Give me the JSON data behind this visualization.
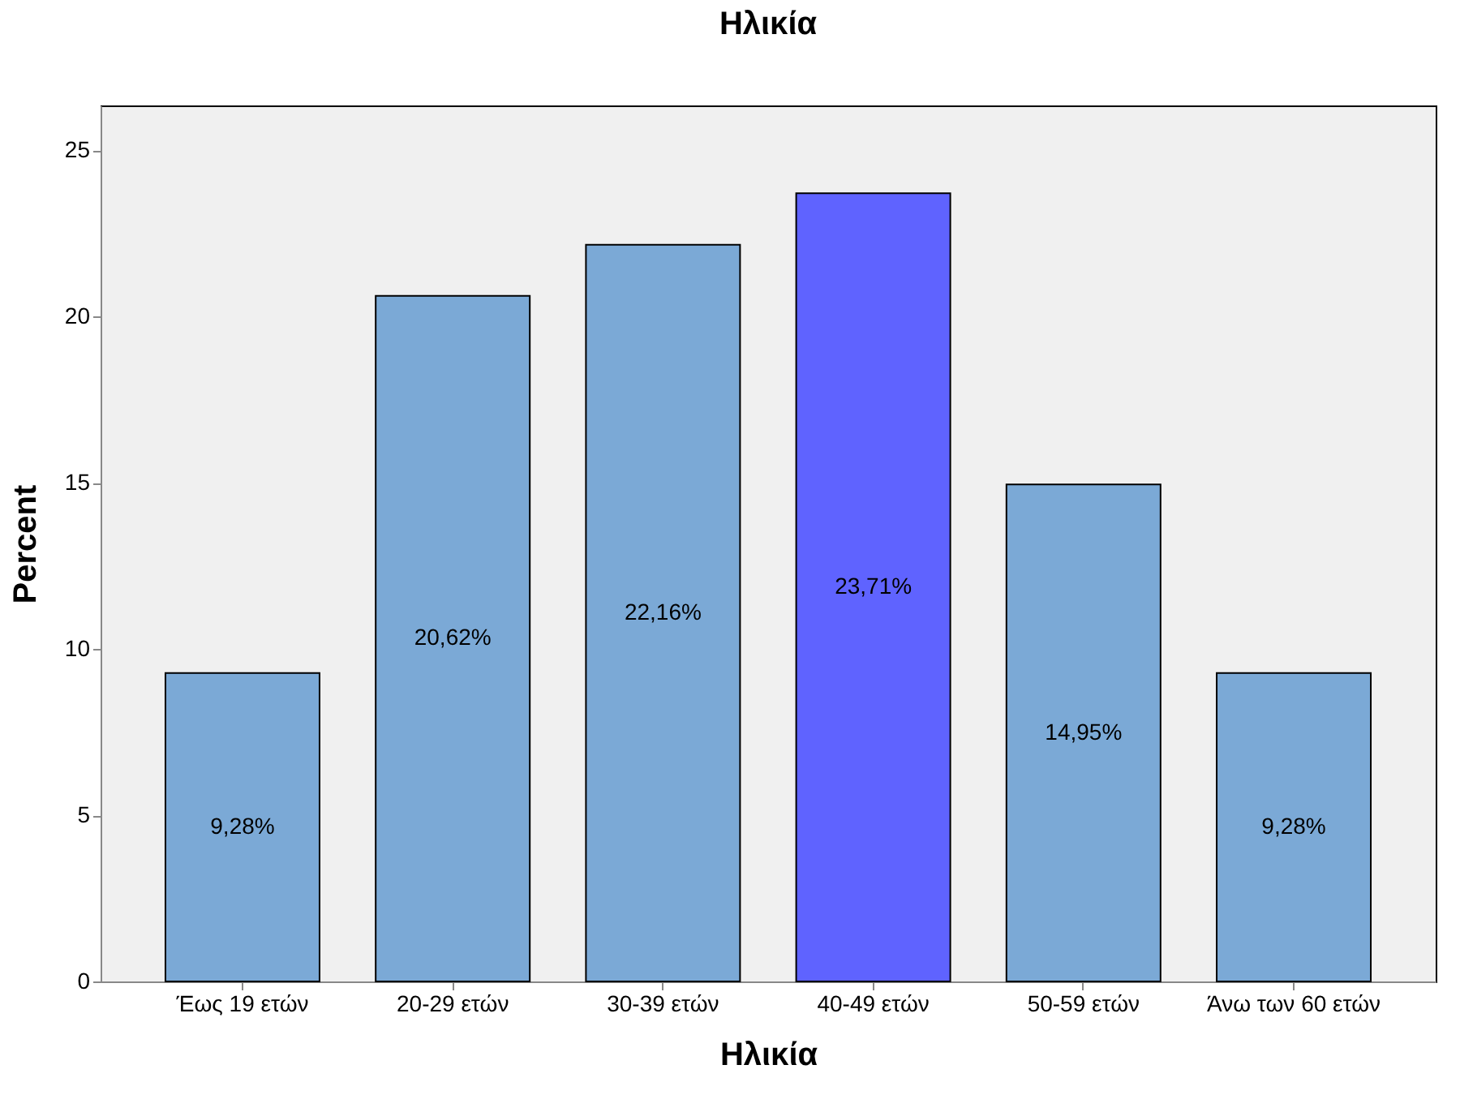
{
  "chart_data": {
    "type": "bar",
    "title": "Ηλικία",
    "xlabel": "Ηλικία",
    "ylabel": "Percent",
    "categories": [
      "Έως 19 ετών",
      "20-29 ετών",
      "30-39 ετών",
      "40-49 ετών",
      "50-59 ετών",
      "Άνω των 60 ετών"
    ],
    "values": [
      9.28,
      20.62,
      22.16,
      23.71,
      14.95,
      9.28
    ],
    "colors": [
      "#7ba9d6",
      "#7ba9d6",
      "#7ba9d6",
      "#5f63ff",
      "#7ba9d6",
      "#7ba9d6"
    ],
    "value_labels": [
      "9,28%",
      "20,62%",
      "22,16%",
      "23,71%",
      "14,95%",
      "9,28%"
    ],
    "ylim": [
      0,
      26.35
    ],
    "yticks": [
      0,
      5,
      10,
      15,
      20,
      25
    ],
    "grid": false
  }
}
